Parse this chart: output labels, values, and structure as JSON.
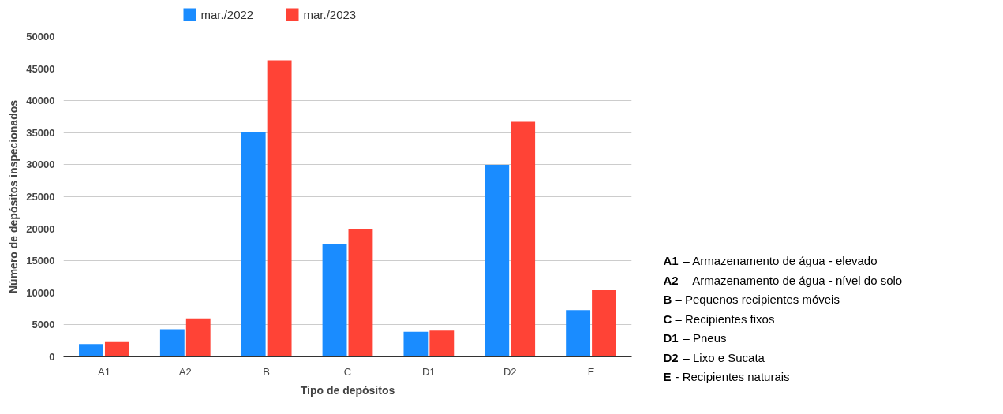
{
  "chart_data": {
    "type": "bar",
    "xlabel": "Tipo de depósitos",
    "ylabel": "Número de depósitos inspecionados",
    "categories": [
      "A1",
      "A2",
      "B",
      "C",
      "D1",
      "D2",
      "E"
    ],
    "series": [
      {
        "name": "mar./2022",
        "color": "#1a8cff",
        "values": [
          2000,
          4300,
          35100,
          17600,
          3900,
          30000,
          7300
        ]
      },
      {
        "name": "mar./2023",
        "color": "#ff4336",
        "values": [
          2300,
          6000,
          46300,
          19900,
          4100,
          36700,
          10400
        ]
      }
    ],
    "ylim": [
      0,
      50000
    ],
    "yticks": [
      0,
      5000,
      10000,
      15000,
      20000,
      25000,
      30000,
      35000,
      40000,
      45000,
      50000
    ],
    "grid": "y",
    "legend": "top",
    "annotations": [
      "A1 – Armazenamento de água - elevado",
      "A2 – Armazenamento de água - nível do solo",
      "B – Pequenos recipientes móveis",
      "C – Recipientes fixos",
      "D1 – Pneus",
      "D2 – Lixo e Sucata",
      "E - Recipientes naturais"
    ]
  }
}
